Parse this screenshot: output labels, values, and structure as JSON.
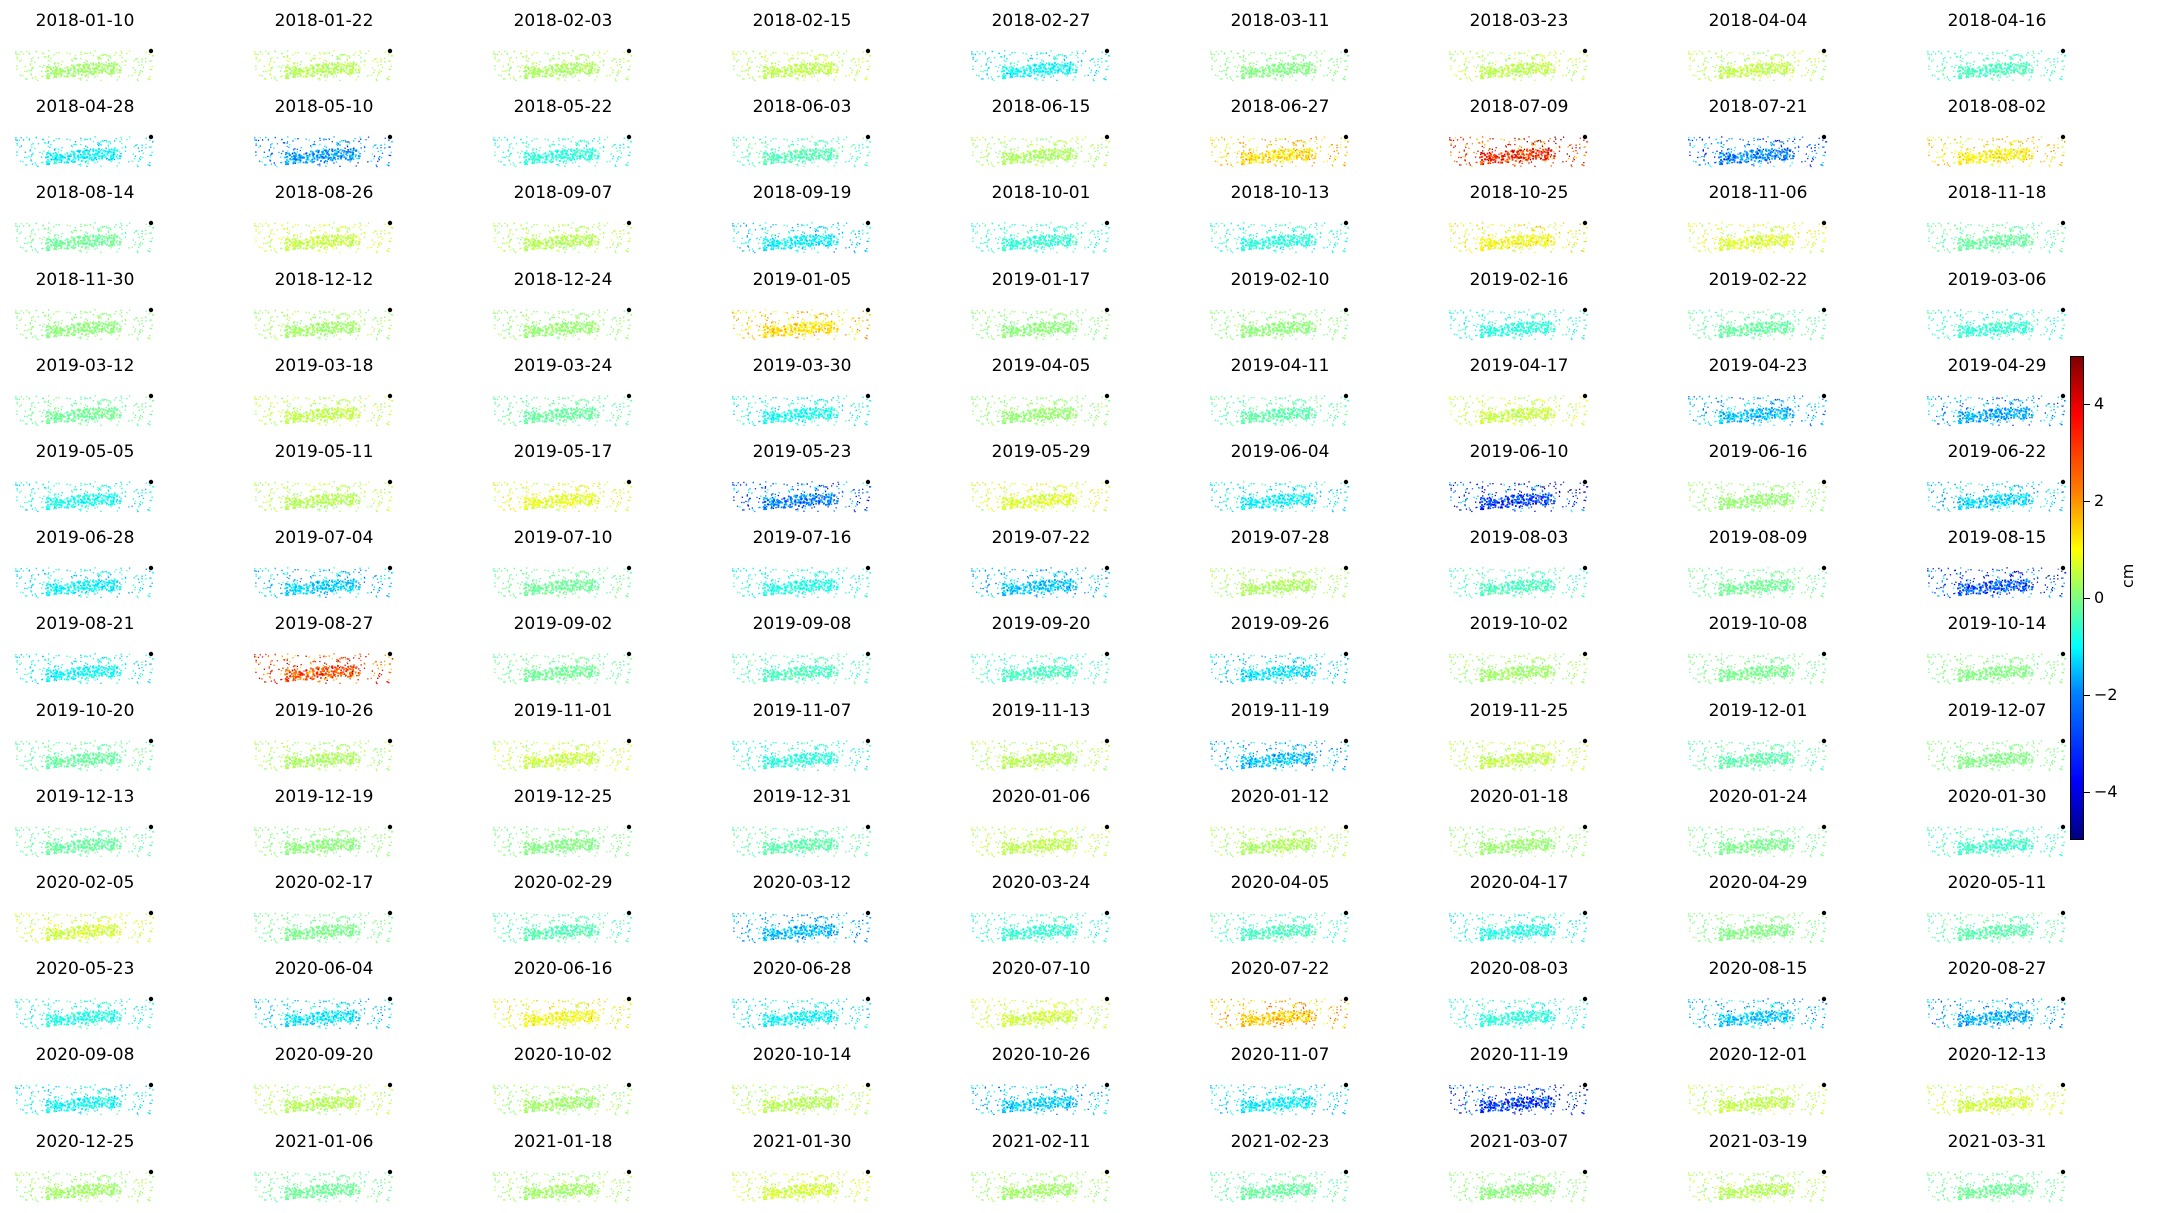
{
  "chart_data": {
    "type": "heatmap",
    "dates": [
      "2018-01-10",
      "2018-01-22",
      "2018-02-03",
      "2018-02-15",
      "2018-02-27",
      "2018-03-11",
      "2018-03-23",
      "2018-04-04",
      "2018-04-16",
      "2018-04-28",
      "2018-05-10",
      "2018-05-22",
      "2018-06-03",
      "2018-06-15",
      "2018-06-27",
      "2018-07-09",
      "2018-07-21",
      "2018-08-02",
      "2018-08-14",
      "2018-08-26",
      "2018-09-07",
      "2018-09-19",
      "2018-10-01",
      "2018-10-13",
      "2018-10-25",
      "2018-11-06",
      "2018-11-18",
      "2018-11-30",
      "2018-12-12",
      "2018-12-24",
      "2019-01-05",
      "2019-01-17",
      "2019-02-10",
      "2019-02-16",
      "2019-02-22",
      "2019-03-06",
      "2019-03-12",
      "2019-03-18",
      "2019-03-24",
      "2019-03-30",
      "2019-04-05",
      "2019-04-11",
      "2019-04-17",
      "2019-04-23",
      "2019-04-29",
      "2019-05-05",
      "2019-05-11",
      "2019-05-17",
      "2019-05-23",
      "2019-05-29",
      "2019-06-04",
      "2019-06-10",
      "2019-06-16",
      "2019-06-22",
      "2019-06-28",
      "2019-07-04",
      "2019-07-10",
      "2019-07-16",
      "2019-07-22",
      "2019-07-28",
      "2019-08-03",
      "2019-08-09",
      "2019-08-15",
      "2019-08-21",
      "2019-08-27",
      "2019-09-02",
      "2019-09-08",
      "2019-09-20",
      "2019-09-26",
      "2019-10-02",
      "2019-10-08",
      "2019-10-14",
      "2019-10-20",
      "2019-10-26",
      "2019-11-01",
      "2019-11-07",
      "2019-11-13",
      "2019-11-19",
      "2019-11-25",
      "2019-12-01",
      "2019-12-07",
      "2019-12-13",
      "2019-12-19",
      "2019-12-25",
      "2019-12-31",
      "2020-01-06",
      "2020-01-12",
      "2020-01-18",
      "2020-01-24",
      "2020-01-30",
      "2020-02-05",
      "2020-02-17",
      "2020-02-29",
      "2020-03-12",
      "2020-03-24",
      "2020-04-05",
      "2020-04-17",
      "2020-04-29",
      "2020-05-11",
      "2020-05-23",
      "2020-06-04",
      "2020-06-16",
      "2020-06-28",
      "2020-07-10",
      "2020-07-22",
      "2020-08-03",
      "2020-08-15",
      "2020-08-27",
      "2020-09-08",
      "2020-09-20",
      "2020-10-02",
      "2020-10-14",
      "2020-10-26",
      "2020-11-07",
      "2020-11-19",
      "2020-12-01",
      "2020-12-13",
      "2020-12-25",
      "2021-01-06",
      "2021-01-18",
      "2021-01-30",
      "2021-02-11",
      "2021-02-23",
      "2021-03-07",
      "2021-03-19",
      "2021-03-31"
    ],
    "panel_mean_cm": [
      0.3,
      0.5,
      0.4,
      0.6,
      -1.2,
      0.0,
      0.6,
      0.6,
      -0.6,
      -1.3,
      -2.2,
      -0.9,
      -0.5,
      0.4,
      1.6,
      3.4,
      -2.5,
      1.4,
      -0.2,
      0.7,
      0.5,
      -1.4,
      -0.8,
      -0.9,
      1.2,
      0.9,
      -0.3,
      0.1,
      0.3,
      0.2,
      1.6,
      0.1,
      0.1,
      -0.9,
      -0.3,
      -0.8,
      -0.2,
      0.6,
      -0.3,
      -1.1,
      0.2,
      -0.4,
      0.7,
      -1.9,
      -2.1,
      -1.1,
      0.5,
      1.0,
      -2.5,
      0.9,
      -1.3,
      -3.2,
      0.2,
      -1.6,
      -1.3,
      -1.7,
      -0.2,
      -1.0,
      -1.8,
      0.4,
      -0.6,
      -0.2,
      -3.0,
      -1.2,
      3.0,
      -0.2,
      -0.6,
      -0.6,
      -1.5,
      0.3,
      -0.1,
      0.0,
      -0.3,
      0.4,
      0.7,
      -0.9,
      0.5,
      -1.9,
      0.6,
      -0.4,
      0.0,
      -0.3,
      0.1,
      0.0,
      -0.4,
      0.6,
      0.4,
      0.2,
      -0.1,
      -0.7,
      0.8,
      -0.1,
      -0.5,
      -1.9,
      -0.8,
      -0.6,
      -1.0,
      0.0,
      -0.4,
      -1.0,
      -1.5,
      1.2,
      -1.3,
      0.8,
      1.8,
      -0.9,
      -1.8,
      -2.0,
      -1.2,
      0.5,
      0.3,
      0.5,
      -1.7,
      -1.4,
      -3.3,
      0.6,
      0.8,
      0.3,
      -0.2,
      0.3,
      0.8,
      0.3,
      -0.3,
      0.1,
      0.5,
      -0.2
    ],
    "colorbar": {
      "colormap": "jet",
      "vmin": -5,
      "vmax": 5,
      "ticks": [
        4,
        2,
        0,
        -2,
        -4
      ],
      "tick_labels": [
        "4",
        "2",
        "0",
        "−2",
        "−4"
      ],
      "label": "cm"
    },
    "grid": {
      "rows": 14,
      "cols": 9
    }
  }
}
